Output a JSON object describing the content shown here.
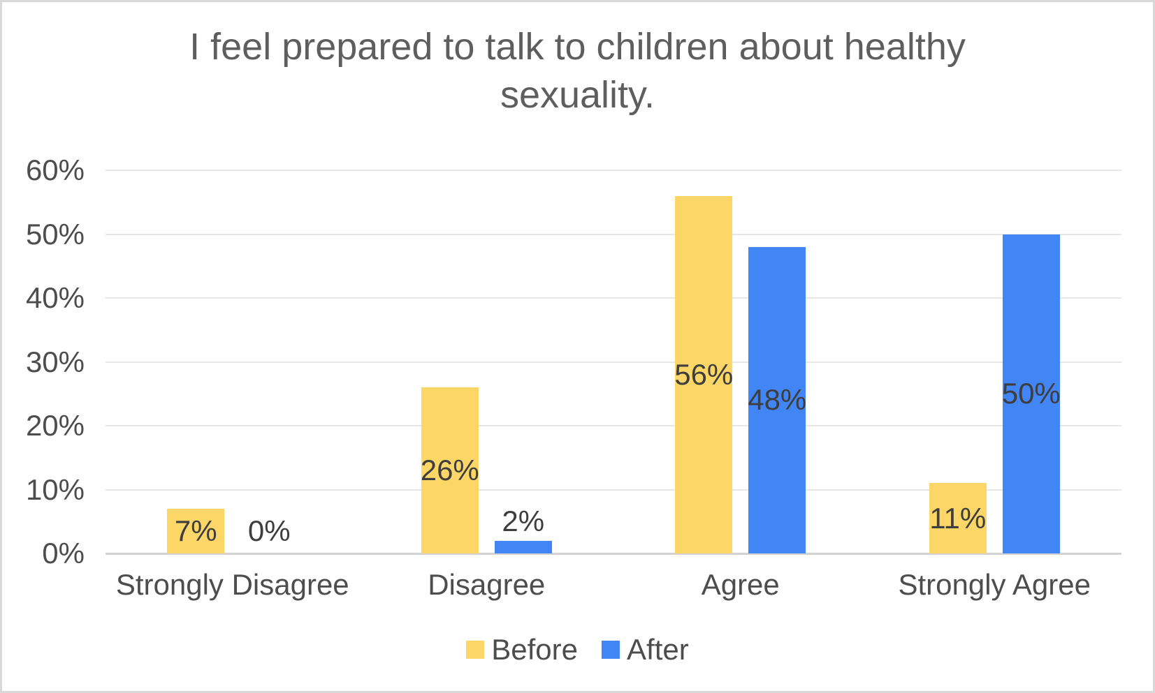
{
  "chart_data": {
    "type": "bar",
    "title": "I feel prepared to talk to children about healthy sexuality.",
    "categories": [
      "Strongly Disagree",
      "Disagree",
      "Agree",
      "Strongly Agree"
    ],
    "series": [
      {
        "name": "Before",
        "color": "#FCD666",
        "values": [
          7,
          26,
          56,
          11
        ]
      },
      {
        "name": "After",
        "color": "#4285F4",
        "values": [
          0,
          2,
          48,
          50
        ]
      }
    ],
    "data_label_suffix": "%",
    "data_labels": {
      "Before": [
        "7%",
        "26%",
        "56%",
        "11%"
      ],
      "After": [
        "0%",
        "2%",
        "48%",
        "50%"
      ]
    },
    "ylim": [
      0,
      60
    ],
    "ytick_step": 10,
    "ytick_labels": [
      "0%",
      "10%",
      "20%",
      "30%",
      "40%",
      "50%",
      "60%"
    ],
    "xlabel": "",
    "ylabel": "",
    "grid": true,
    "legend_position": "bottom"
  },
  "colors": {
    "before_bar": "#FCD666",
    "after_bar": "#4285F4",
    "gridline": "#E7E7E7",
    "axis_line": "#D2D2D2",
    "title_text": "#5E5E5E",
    "axis_text": "#4D4D4D",
    "data_label_text": "#3E3E3E",
    "frame_border": "#D8D8D8",
    "background": "#FFFFFF"
  }
}
